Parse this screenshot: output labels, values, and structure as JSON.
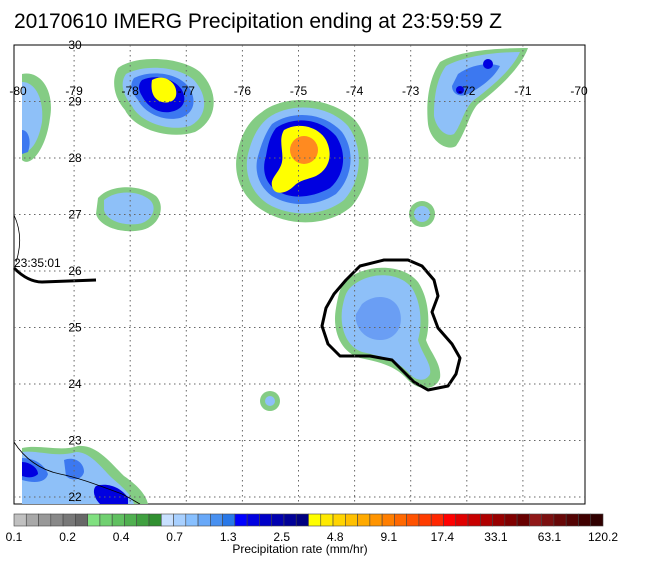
{
  "title": "20170610 IMERG Precipitation ending at 23:59:59 Z",
  "map": {
    "lon_ticks": [
      "-80",
      "-79",
      "-78",
      "-77",
      "-76",
      "-75",
      "-74",
      "-73",
      "-72",
      "-71",
      "-70"
    ],
    "lat_ticks": [
      "30",
      "29",
      "28",
      "27",
      "26",
      "25",
      "24",
      "23",
      "22"
    ],
    "lon_range": [
      -80,
      -70
    ],
    "lat_range": [
      21.8,
      30
    ],
    "grid": "dotted",
    "swath_time_label": "23:35:01"
  },
  "colorbar": {
    "tick_labels": [
      "0.1",
      "0.2",
      "0.4",
      "0.7",
      "1.3",
      "2.5",
      "4.8",
      "9.1",
      "17.4",
      "33.1",
      "63.1",
      "120.2"
    ],
    "label": "Precipitation rate (mm/hr)",
    "colors": [
      "#c0c0c0",
      "#a8a8a8",
      "#989898",
      "#888888",
      "#787878",
      "#686868",
      "#80e080",
      "#70d070",
      "#60c060",
      "#50b050",
      "#40a040",
      "#309030",
      "#c8e0ff",
      "#a8d0ff",
      "#88c0ff",
      "#68a8f8",
      "#4890f0",
      "#2878e8",
      "#0000ff",
      "#0000e0",
      "#0000c8",
      "#0000b0",
      "#000098",
      "#000080",
      "#ffff00",
      "#ffea00",
      "#ffd400",
      "#ffc000",
      "#ffaa00",
      "#ff9400",
      "#ff7e00",
      "#ff6800",
      "#ff5200",
      "#ff3c00",
      "#ff2600",
      "#ff0000",
      "#e00000",
      "#c80000",
      "#b00000",
      "#980000",
      "#800000",
      "#680000",
      "#901818",
      "#7c1010",
      "#680808",
      "#540404",
      "#400000",
      "#300000"
    ]
  },
  "colors": {
    "light_green": "#84cc84",
    "light_blue": "#8ec0f8",
    "mid_blue": "#3c78f0",
    "deep_blue": "#0000e0",
    "yellow": "#ffff00",
    "orange": "#ff8a20"
  }
}
